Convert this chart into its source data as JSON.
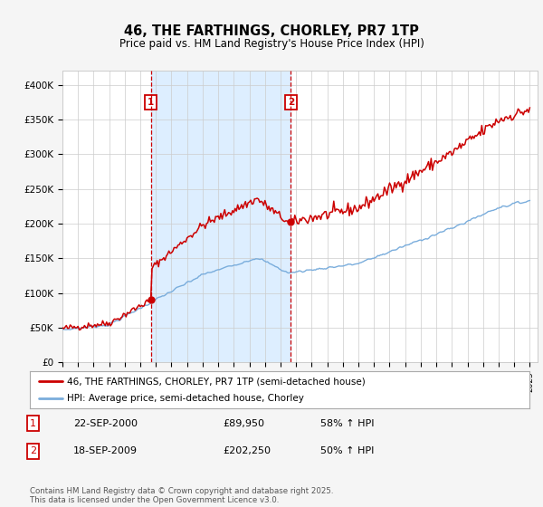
{
  "title": "46, THE FARTHINGS, CHORLEY, PR7 1TP",
  "subtitle": "Price paid vs. HM Land Registry's House Price Index (HPI)",
  "legend_line1": "46, THE FARTHINGS, CHORLEY, PR7 1TP (semi-detached house)",
  "legend_line2": "HPI: Average price, semi-detached house, Chorley",
  "transaction1_date": "22-SEP-2000",
  "transaction1_price": "£89,950",
  "transaction1_hpi": "58% ↑ HPI",
  "transaction2_date": "18-SEP-2009",
  "transaction2_price": "£202,250",
  "transaction2_hpi": "50% ↑ HPI",
  "footer": "Contains HM Land Registry data © Crown copyright and database right 2025.\nThis data is licensed under the Open Government Licence v3.0.",
  "red_color": "#cc0000",
  "blue_color": "#7aaddc",
  "shade_color": "#ddeeff",
  "background_color": "#f5f5f5",
  "plot_bg_color": "#ffffff",
  "grid_color": "#cccccc",
  "ylim": [
    0,
    420000
  ],
  "yticks": [
    0,
    50000,
    100000,
    150000,
    200000,
    250000,
    300000,
    350000,
    400000
  ],
  "ytick_labels": [
    "£0",
    "£50K",
    "£100K",
    "£150K",
    "£200K",
    "£250K",
    "£300K",
    "£350K",
    "£400K"
  ],
  "year_start": 1995,
  "year_end": 2025,
  "sale1_year": 2000,
  "sale1_month_idx": 8,
  "sale1_price": 89950,
  "sale2_year": 2009,
  "sale2_month_idx": 8,
  "sale2_price": 202250
}
